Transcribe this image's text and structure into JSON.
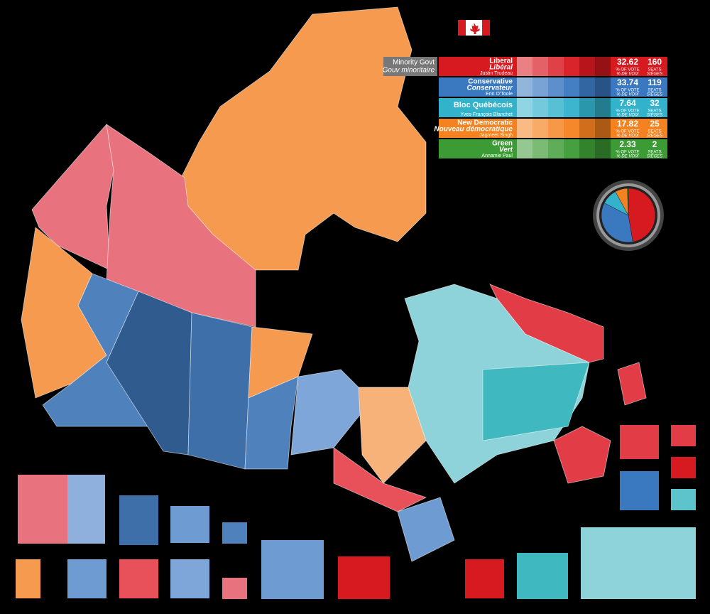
{
  "government": {
    "label": "Minority Govt",
    "label_fr": "Gouv minoritaire"
  },
  "vote_label": "% OF VOTE",
  "vote_label_fr": "% DE VOIX",
  "seats_label": "SEATS",
  "seats_label_fr": "SIÈGES",
  "parties": [
    {
      "name": "Liberal",
      "name_fr": "Libéral",
      "leader": "Justin Trudeau",
      "vote": 32.62,
      "seats": 160,
      "color": "#d71920"
    },
    {
      "name": "Conservative",
      "name_fr": "Conservateur",
      "leader": "Erin O'Toole",
      "vote": 33.74,
      "seats": 119,
      "color": "#3a78c0"
    },
    {
      "name": "Bloc Québécois",
      "leader": "Yves-François Blanchet",
      "vote": 7.64,
      "seats": 32,
      "color": "#33b2cc"
    },
    {
      "name": "New Democratic",
      "name_fr": "Nouveau démocratique",
      "leader": "Jagmeet Singh",
      "vote": 17.82,
      "seats": 25,
      "color": "#f58220"
    },
    {
      "name": "Green",
      "name_fr": "Vert",
      "leader": "Annamie Paul",
      "vote": 2.33,
      "seats": 2,
      "color": "#3d9b35"
    }
  ]
}
